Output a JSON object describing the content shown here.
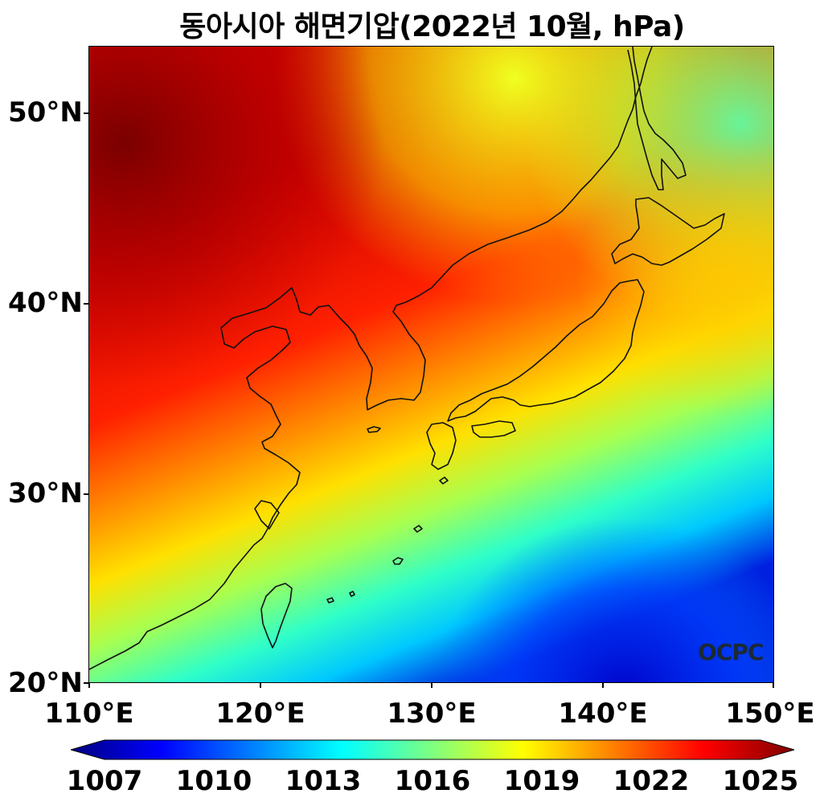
{
  "title": "동아시아 해면기압(2022년 10월, hPa)",
  "logo": "OCPC",
  "lat_ticks": [
    "50°N",
    "40°N",
    "30°N",
    "20°N"
  ],
  "lon_ticks": [
    "110°E",
    "120°E",
    "130°E",
    "140°E",
    "150°E"
  ],
  "colorbar": {
    "ticks": [
      "1007",
      "1010",
      "1013",
      "1016",
      "1019",
      "1022",
      "1025"
    ],
    "colormap": "jet",
    "extend": "both",
    "colors": [
      "#00007f",
      "#0000ff",
      "#007fff",
      "#00ffff",
      "#7fff7f",
      "#ffff00",
      "#ff7f00",
      "#ff0000",
      "#7f0000"
    ]
  },
  "extent": {
    "lon": [
      110,
      150
    ],
    "lat": [
      20,
      53.5
    ]
  }
}
